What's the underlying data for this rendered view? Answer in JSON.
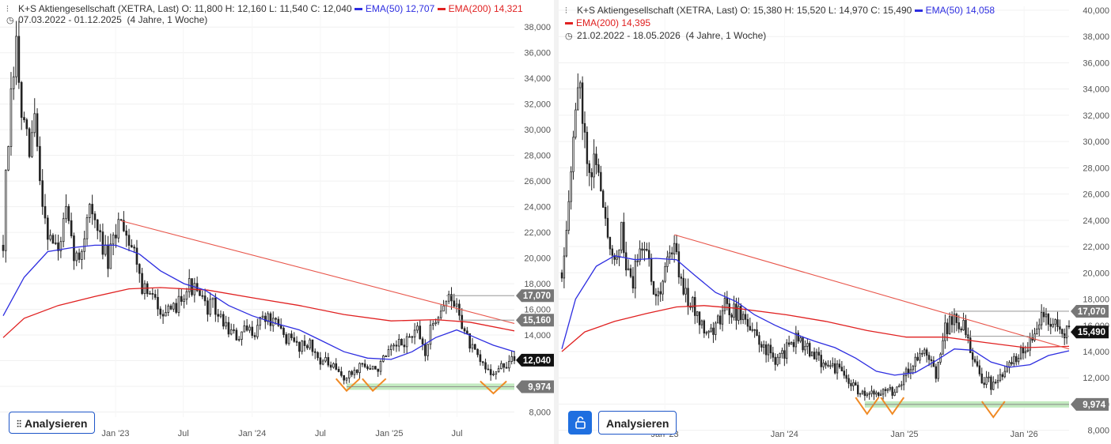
{
  "chart_data": [
    {
      "type": "candlestick",
      "title": "K+S Aktiengesellschaft (XETRA, Last)",
      "ohlc_label": {
        "o": "O: 11,800",
        "h": "H: 12,160",
        "l": "L: 11,540",
        "c": "C: 12,040"
      },
      "indicators": [
        {
          "name": "EMA(50)",
          "value": "12,707",
          "color": "#2d2de0"
        },
        {
          "name": "EMA(200)",
          "value": "14,321",
          "color": "#e02020"
        }
      ],
      "range_label": "07.03.2022 - 01.12.2025",
      "period_label": "(4 Jahre, 1 Woche)",
      "ylim": [
        7600,
        39000
      ],
      "y_ticks": [
        "8,000",
        "10,000",
        "12,000",
        "14,000",
        "16,000",
        "18,000",
        "20,000",
        "22,000",
        "24,000",
        "26,000",
        "28,000",
        "30,000",
        "32,000",
        "34,000",
        "36,000",
        "38,000"
      ],
      "x_ticks": [
        "Jan '23",
        "Jul",
        "Jan '24",
        "Jul",
        "Jan '25",
        "Jul"
      ],
      "x_tick_dates": [
        "2023-01-01",
        "2023-07-01",
        "2024-01-01",
        "2024-07-01",
        "2025-01-01",
        "2025-07-01"
      ],
      "x_start": "2022-03-07",
      "x_end": "2025-12-01",
      "price_path": [
        [
          "2022-03-07",
          21000
        ],
        [
          "2022-03-14",
          26000
        ],
        [
          "2022-03-28",
          32000
        ],
        [
          "2022-04-11",
          36500
        ],
        [
          "2022-04-25",
          31000
        ],
        [
          "2022-05-16",
          28000
        ],
        [
          "2022-05-30",
          31000
        ],
        [
          "2022-06-13",
          26000
        ],
        [
          "2022-07-04",
          22000
        ],
        [
          "2022-08-01",
          20500
        ],
        [
          "2022-08-22",
          23500
        ],
        [
          "2022-09-05",
          21000
        ],
        [
          "2022-09-26",
          19500
        ],
        [
          "2022-10-10",
          22000
        ],
        [
          "2022-10-24",
          24500
        ],
        [
          "2022-11-07",
          22500
        ],
        [
          "2022-11-28",
          21000
        ],
        [
          "2022-12-12",
          19500
        ],
        [
          "2023-01-02",
          22000
        ],
        [
          "2023-01-16",
          23500
        ],
        [
          "2023-01-30",
          22000
        ],
        [
          "2023-02-13",
          21000
        ],
        [
          "2023-02-27",
          20000
        ],
        [
          "2023-03-13",
          17800
        ],
        [
          "2023-04-03",
          17000
        ],
        [
          "2023-05-01",
          16200
        ],
        [
          "2023-05-29",
          15500
        ],
        [
          "2023-06-26",
          17200
        ],
        [
          "2023-07-17",
          17900
        ],
        [
          "2023-08-07",
          17200
        ],
        [
          "2023-08-28",
          16200
        ],
        [
          "2023-09-18",
          16300
        ],
        [
          "2023-10-09",
          15200
        ],
        [
          "2023-10-30",
          14500
        ],
        [
          "2023-11-20",
          13700
        ],
        [
          "2023-12-11",
          14200
        ],
        [
          "2024-01-08",
          14400
        ],
        [
          "2024-01-29",
          15500
        ],
        [
          "2024-02-19",
          15100
        ],
        [
          "2024-03-11",
          14500
        ],
        [
          "2024-04-08",
          13600
        ],
        [
          "2024-05-06",
          13200
        ],
        [
          "2024-05-27",
          13500
        ],
        [
          "2024-06-17",
          12500
        ],
        [
          "2024-07-08",
          12000
        ],
        [
          "2024-07-29",
          11500
        ],
        [
          "2024-08-19",
          11000
        ],
        [
          "2024-09-09",
          10600
        ],
        [
          "2024-09-30",
          11200
        ],
        [
          "2024-10-21",
          11800
        ],
        [
          "2024-11-11",
          11200
        ],
        [
          "2024-12-02",
          11500
        ],
        [
          "2024-12-23",
          12200
        ],
        [
          "2025-01-13",
          12900
        ],
        [
          "2025-02-03",
          13300
        ],
        [
          "2025-02-24",
          13800
        ],
        [
          "2025-03-17",
          14200
        ],
        [
          "2025-04-07",
          12700
        ],
        [
          "2025-04-28",
          15000
        ],
        [
          "2025-05-19",
          16200
        ],
        [
          "2025-06-09",
          16800
        ],
        [
          "2025-06-23",
          16400
        ],
        [
          "2025-07-07",
          15800
        ],
        [
          "2025-07-21",
          14200
        ],
        [
          "2025-08-11",
          12800
        ],
        [
          "2025-09-01",
          11800
        ],
        [
          "2025-09-22",
          11300
        ],
        [
          "2025-10-13",
          11100
        ],
        [
          "2025-11-03",
          11600
        ],
        [
          "2025-12-01",
          12040
        ]
      ],
      "ema50_path": [
        [
          "2022-03-07",
          15500
        ],
        [
          "2022-05-02",
          18500
        ],
        [
          "2022-07-04",
          20500
        ],
        [
          "2022-09-05",
          20800
        ],
        [
          "2022-11-07",
          21000
        ],
        [
          "2023-01-02",
          21000
        ],
        [
          "2023-03-06",
          20300
        ],
        [
          "2023-05-01",
          19000
        ],
        [
          "2023-07-03",
          18000
        ],
        [
          "2023-08-28",
          17500
        ],
        [
          "2023-10-30",
          16300
        ],
        [
          "2024-01-01",
          15500
        ],
        [
          "2024-03-04",
          14900
        ],
        [
          "2024-05-06",
          14400
        ],
        [
          "2024-07-01",
          13600
        ],
        [
          "2024-09-02",
          12700
        ],
        [
          "2024-11-04",
          12200
        ],
        [
          "2025-01-06",
          12100
        ],
        [
          "2025-03-03",
          12700
        ],
        [
          "2025-05-05",
          13800
        ],
        [
          "2025-06-30",
          14400
        ],
        [
          "2025-08-11",
          13900
        ],
        [
          "2025-10-06",
          13200
        ],
        [
          "2025-12-01",
          12707
        ]
      ],
      "ema200_path": [
        [
          "2022-03-07",
          13800
        ],
        [
          "2022-05-02",
          15300
        ],
        [
          "2022-08-01",
          16300
        ],
        [
          "2022-11-07",
          17000
        ],
        [
          "2023-02-06",
          17600
        ],
        [
          "2023-05-01",
          17700
        ],
        [
          "2023-09-04",
          17500
        ],
        [
          "2024-01-01",
          16900
        ],
        [
          "2024-05-06",
          16300
        ],
        [
          "2024-09-02",
          15600
        ],
        [
          "2025-01-06",
          15100
        ],
        [
          "2025-05-05",
          15200
        ],
        [
          "2025-08-04",
          15000
        ],
        [
          "2025-12-01",
          14321
        ]
      ],
      "trendline": [
        [
          "2023-01-16",
          22900
        ],
        [
          "2025-12-01",
          14900
        ]
      ],
      "price_levels": [
        {
          "value": 17070,
          "label": "17,070",
          "from": "2025-06-02"
        },
        {
          "value": 15160,
          "label": "15,160",
          "from": "2025-07-07"
        },
        {
          "value": 12040,
          "label": "12,040",
          "current": true
        },
        {
          "value": 9974,
          "label": "9,974",
          "from": "2024-09-09"
        }
      ],
      "pattern_vs": [
        [
          [
            "2024-08-12",
            10600
          ],
          [
            "2024-09-09",
            9650
          ],
          [
            "2024-10-14",
            10600
          ]
        ],
        [
          [
            "2024-10-21",
            10600
          ],
          [
            "2024-11-18",
            9650
          ],
          [
            "2024-12-23",
            10600
          ]
        ],
        [
          [
            "2025-09-01",
            10400
          ],
          [
            "2025-10-06",
            9450
          ],
          [
            "2025-11-10",
            10400
          ]
        ]
      ]
    },
    {
      "type": "candlestick",
      "title": "K+S Aktiengesellschaft (XETRA, Last)",
      "ohlc_label": {
        "o": "O: 15,380",
        "h": "H: 15,520",
        "l": "L: 14,970",
        "c": "C: 15,490"
      },
      "indicators": [
        {
          "name": "EMA(50)",
          "value": "14,058",
          "color": "#2d2de0"
        },
        {
          "name": "EMA(200)",
          "value": "14,395",
          "color": "#e02020"
        }
      ],
      "range_label": "21.02.2022 - 18.05.2026",
      "period_label": "(4 Jahre, 1 Woche)",
      "ylim": [
        7800,
        40300
      ],
      "y_ticks": [
        "8,000",
        "10,000",
        "12,000",
        "14,000",
        "16,000",
        "18,000",
        "20,000",
        "22,000",
        "24,000",
        "26,000",
        "28,000",
        "30,000",
        "32,000",
        "34,000",
        "36,000",
        "38,000",
        "40,000"
      ],
      "x_ticks": [
        "Jan '23",
        "Jan '24",
        "Jan '25",
        "Jan '26"
      ],
      "x_tick_dates": [
        "2023-01-01",
        "2024-01-01",
        "2025-01-01",
        "2026-01-01"
      ],
      "x_start": "2022-02-21",
      "x_end": "2026-05-18",
      "price_path": [
        [
          "2022-02-21",
          20000
        ],
        [
          "2022-03-14",
          26000
        ],
        [
          "2022-04-04",
          32000
        ],
        [
          "2022-04-18",
          35000
        ],
        [
          "2022-05-02",
          30000
        ],
        [
          "2022-05-23",
          28000
        ],
        [
          "2022-06-06",
          29000
        ],
        [
          "2022-06-27",
          24500
        ],
        [
          "2022-08-01",
          21000
        ],
        [
          "2022-08-22",
          23000
        ],
        [
          "2022-09-05",
          20500
        ],
        [
          "2022-09-26",
          19000
        ],
        [
          "2022-10-17",
          22500
        ],
        [
          "2022-11-07",
          21500
        ],
        [
          "2022-11-28",
          19000
        ],
        [
          "2022-12-19",
          18500
        ],
        [
          "2023-01-09",
          21500
        ],
        [
          "2023-01-30",
          22000
        ],
        [
          "2023-02-20",
          19500
        ],
        [
          "2023-03-13",
          18000
        ],
        [
          "2023-04-03",
          17200
        ],
        [
          "2023-05-01",
          16000
        ],
        [
          "2023-05-29",
          15500
        ],
        [
          "2023-07-03",
          17500
        ],
        [
          "2023-08-07",
          17000
        ],
        [
          "2023-09-04",
          16500
        ],
        [
          "2023-10-09",
          15000
        ],
        [
          "2023-11-13",
          14000
        ],
        [
          "2023-12-11",
          13300
        ],
        [
          "2024-01-08",
          14200
        ],
        [
          "2024-02-05",
          15000
        ],
        [
          "2024-03-04",
          14500
        ],
        [
          "2024-04-01",
          13500
        ],
        [
          "2024-05-06",
          13200
        ],
        [
          "2024-06-03",
          12800
        ],
        [
          "2024-07-01",
          12100
        ],
        [
          "2024-08-05",
          11200
        ],
        [
          "2024-09-09",
          10400
        ],
        [
          "2024-10-07",
          11000
        ],
        [
          "2024-11-04",
          11300
        ],
        [
          "2024-12-02",
          11000
        ],
        [
          "2024-12-30",
          12200
        ],
        [
          "2025-02-03",
          13300
        ],
        [
          "2025-03-03",
          13900
        ],
        [
          "2025-04-07",
          12400
        ],
        [
          "2025-05-05",
          15600
        ],
        [
          "2025-06-02",
          16700
        ],
        [
          "2025-06-30",
          15800
        ],
        [
          "2025-07-28",
          13400
        ],
        [
          "2025-08-25",
          12000
        ],
        [
          "2025-09-22",
          11500
        ],
        [
          "2025-10-20",
          11800
        ],
        [
          "2025-11-17",
          12800
        ],
        [
          "2025-12-15",
          13800
        ],
        [
          "2026-01-19",
          14700
        ],
        [
          "2026-02-09",
          15700
        ],
        [
          "2026-02-23",
          17600
        ],
        [
          "2026-03-09",
          16500
        ],
        [
          "2026-03-23",
          15400
        ],
        [
          "2026-04-06",
          16300
        ],
        [
          "2026-04-27",
          15600
        ],
        [
          "2026-05-18",
          15490
        ]
      ],
      "ema50_path": [
        [
          "2022-02-21",
          14200
        ],
        [
          "2022-04-04",
          18000
        ],
        [
          "2022-06-06",
          20500
        ],
        [
          "2022-08-01",
          21300
        ],
        [
          "2022-10-03",
          21000
        ],
        [
          "2022-12-05",
          21100
        ],
        [
          "2023-02-06",
          21000
        ],
        [
          "2023-04-03",
          19800
        ],
        [
          "2023-06-05",
          18500
        ],
        [
          "2023-08-07",
          17800
        ],
        [
          "2023-10-02",
          16800
        ],
        [
          "2023-12-04",
          16000
        ],
        [
          "2024-02-05",
          15300
        ],
        [
          "2024-04-01",
          14800
        ],
        [
          "2024-06-03",
          14300
        ],
        [
          "2024-08-05",
          13500
        ],
        [
          "2024-10-07",
          12500
        ],
        [
          "2024-12-02",
          12200
        ],
        [
          "2025-02-03",
          12400
        ],
        [
          "2025-04-07",
          13300
        ],
        [
          "2025-06-02",
          14200
        ],
        [
          "2025-07-28",
          14100
        ],
        [
          "2025-09-22",
          13200
        ],
        [
          "2025-11-17",
          12800
        ],
        [
          "2026-01-19",
          13000
        ],
        [
          "2026-03-16",
          13700
        ],
        [
          "2026-05-18",
          14058
        ]
      ],
      "ema200_path": [
        [
          "2022-02-21",
          14000
        ],
        [
          "2022-05-02",
          15500
        ],
        [
          "2022-08-01",
          16300
        ],
        [
          "2022-11-07",
          16900
        ],
        [
          "2023-02-06",
          17400
        ],
        [
          "2023-05-01",
          17500
        ],
        [
          "2023-08-07",
          17300
        ],
        [
          "2024-01-08",
          16800
        ],
        [
          "2024-05-06",
          16300
        ],
        [
          "2024-09-09",
          15600
        ],
        [
          "2025-01-06",
          15100
        ],
        [
          "2025-05-05",
          15100
        ],
        [
          "2025-09-01",
          14700
        ],
        [
          "2026-01-05",
          14300
        ],
        [
          "2026-05-18",
          14395
        ]
      ],
      "trendline": [
        [
          "2023-01-30",
          22900
        ],
        [
          "2026-05-18",
          14200
        ]
      ],
      "price_levels": [
        {
          "value": 17070,
          "label": "17,070",
          "from": "2025-06-02"
        },
        {
          "value": 15490,
          "label": "15,490",
          "current": true
        },
        {
          "value": 15160,
          "label": "",
          "from": "2025-07-07"
        },
        {
          "value": 9974,
          "label": "9,974",
          "from": "2024-09-02"
        }
      ],
      "pattern_vs": [
        [
          [
            "2024-08-05",
            10500
          ],
          [
            "2024-09-09",
            9250
          ],
          [
            "2024-10-14",
            10500
          ]
        ],
        [
          [
            "2024-10-21",
            10500
          ],
          [
            "2024-11-25",
            9250
          ],
          [
            "2024-12-30",
            10500
          ]
        ],
        [
          [
            "2025-08-25",
            10200
          ],
          [
            "2025-09-29",
            9000
          ],
          [
            "2025-11-03",
            10200
          ]
        ]
      ]
    }
  ],
  "ui": {
    "left_button_label": "Analysieren",
    "right_button_label": "Analysieren",
    "analyze_icon": "chart-analyze-icon",
    "lock_icon": "unlock-icon",
    "clock_icon": "clock-icon",
    "chart_type_icon": "candlestick-icon"
  }
}
